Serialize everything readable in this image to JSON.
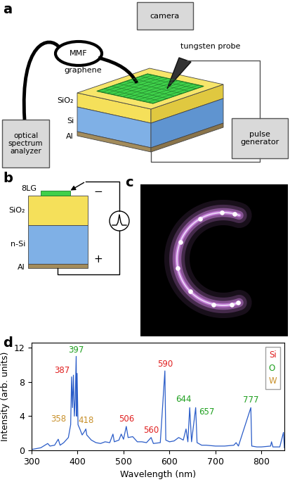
{
  "panel_a": {
    "label": "a",
    "camera": "camera",
    "fiber": "MMF",
    "analyzer": "optical\nspectrum\nanalyzer",
    "probe": "tungsten probe",
    "generator": "pulse\ngenerator",
    "layers": [
      "graphene",
      "SiO₂",
      "Si",
      "Al"
    ]
  },
  "panel_b": {
    "label": "b",
    "layers": [
      "8LG",
      "SiO₂",
      "n-Si",
      "Al"
    ],
    "negative": "−",
    "positive": "+"
  },
  "panel_c": {
    "label": "c"
  },
  "panel_d": {
    "label": "d"
  },
  "chart_data": {
    "type": "line",
    "x_label": "Wavelength (nm)",
    "y_label": "Intensity (arb. units)",
    "x": [
      300,
      320,
      335,
      340,
      350,
      358,
      362,
      370,
      380,
      385,
      387,
      389,
      391,
      393,
      395,
      397,
      398,
      399,
      401,
      405,
      410,
      415,
      418,
      420,
      425,
      430,
      440,
      450,
      460,
      470,
      477,
      480,
      490,
      495,
      500,
      506,
      510,
      520,
      530,
      540,
      550,
      560,
      565,
      580,
      590,
      592,
      600,
      610,
      620,
      630,
      636,
      640,
      644,
      648,
      657,
      660,
      670,
      680,
      700,
      720,
      740,
      745,
      750,
      777,
      779,
      790,
      800,
      820,
      822,
      825,
      840,
      848,
      850
    ],
    "values": [
      0.1,
      0.3,
      0.8,
      0.5,
      0.6,
      1.3,
      0.6,
      0.9,
      1.5,
      3.0,
      8.6,
      5.0,
      8.8,
      4.0,
      6.0,
      11.0,
      4.0,
      9.0,
      3.0,
      2.5,
      1.8,
      2.2,
      2.5,
      1.8,
      1.5,
      1.2,
      0.9,
      0.8,
      1.0,
      0.9,
      1.9,
      1.0,
      1.2,
      1.9,
      1.3,
      2.8,
      1.5,
      1.6,
      1.0,
      1.0,
      0.9,
      1.5,
      0.8,
      0.9,
      9.3,
      1.2,
      1.0,
      1.1,
      1.5,
      1.2,
      2.5,
      1.0,
      5.0,
      1.0,
      5.0,
      0.9,
      0.6,
      0.6,
      0.5,
      0.5,
      0.6,
      0.9,
      0.5,
      5.0,
      0.5,
      0.4,
      0.4,
      0.5,
      1.0,
      0.4,
      0.4,
      2.1,
      0.3
    ],
    "color": "#2a5cc8",
    "xlim": [
      300,
      850
    ],
    "ylim": [
      0,
      12.6
    ],
    "xticks": [
      300,
      400,
      500,
      600,
      700,
      800
    ],
    "yticks": [
      0,
      4,
      8,
      12
    ],
    "legend": "upper right",
    "elements": [
      {
        "name": "Si",
        "color": "#e02020"
      },
      {
        "name": "O",
        "color": "#20a020"
      },
      {
        "name": "W",
        "color": "#c8902a"
      }
    ],
    "annotations": [
      {
        "text": "387",
        "x": 387,
        "element": "Si"
      },
      {
        "text": "397",
        "x": 397,
        "element": "O"
      },
      {
        "text": "358",
        "x": 358,
        "element": "W"
      },
      {
        "text": "418",
        "x": 418,
        "element": "W"
      },
      {
        "text": "506",
        "x": 506,
        "element": "Si"
      },
      {
        "text": "560",
        "x": 560,
        "element": "Si"
      },
      {
        "text": "590",
        "x": 590,
        "element": "Si"
      },
      {
        "text": "644",
        "x": 644,
        "element": "O"
      },
      {
        "text": "657",
        "x": 657,
        "element": "O"
      },
      {
        "text": "777",
        "x": 777,
        "element": "O"
      }
    ]
  }
}
